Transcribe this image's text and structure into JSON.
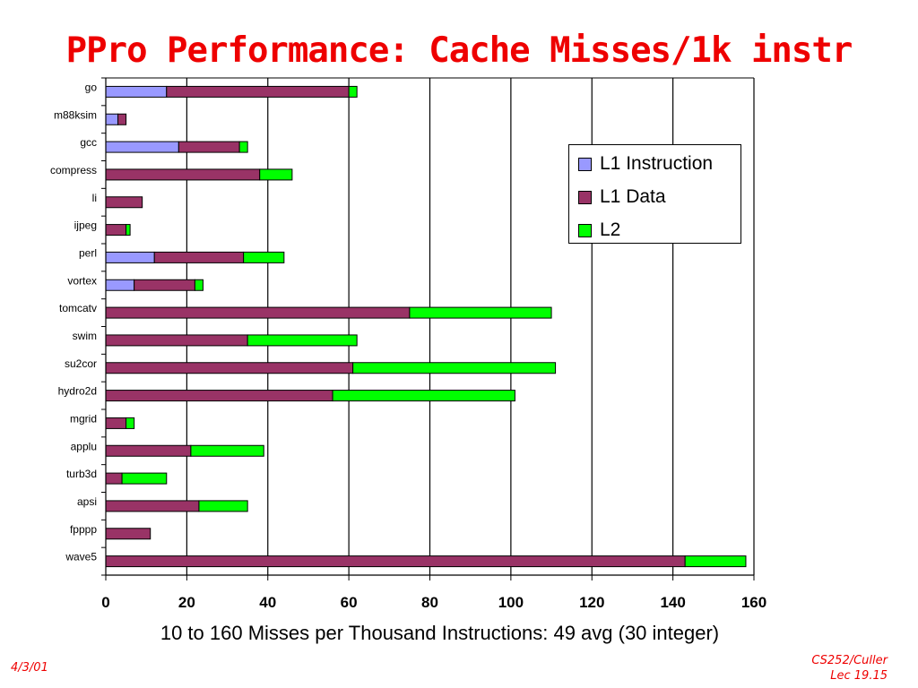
{
  "slide": {
    "title": "PPro Performance: Cache Misses/1k instr",
    "footer_date": "4/3/01",
    "footer_course": "CS252/Culler",
    "footer_lecture": "Lec 19.15"
  },
  "chart_data": {
    "type": "bar",
    "orientation": "horizontal",
    "stacked": true,
    "title": "",
    "xlabel": "10 to 160 Misses per Thousand Instructions: 49 avg (30 integer)",
    "ylabel": "",
    "xlim": [
      0,
      160
    ],
    "xticks": [
      "0",
      "20",
      "40",
      "60",
      "80",
      "100",
      "120",
      "140",
      "160"
    ],
    "grid": "vertical",
    "legend_position": "top-right",
    "categories": [
      "go",
      "m88ksim",
      "gcc",
      "compress",
      "li",
      "ijpeg",
      "perl",
      "vortex",
      "tomcatv",
      "swim",
      "su2cor",
      "hydro2d",
      "mgrid",
      "applu",
      "turb3d",
      "apsi",
      "fpppp",
      "wave5"
    ],
    "series": [
      {
        "name": "L1 Instruction",
        "color": "#9999ff",
        "values": [
          15,
          3,
          18,
          0,
          0,
          0,
          12,
          7,
          0,
          0,
          0,
          0,
          0,
          0,
          0,
          0,
          0,
          0
        ]
      },
      {
        "name": "L1 Data",
        "color": "#993366",
        "values": [
          45,
          2,
          15,
          38,
          9,
          5,
          22,
          15,
          75,
          35,
          61,
          56,
          5,
          21,
          4,
          23,
          11,
          143
        ]
      },
      {
        "name": "L2",
        "color": "#00ff00",
        "values": [
          2,
          0,
          2,
          8,
          0,
          1,
          10,
          2,
          35,
          27,
          50,
          45,
          2,
          18,
          11,
          12,
          0,
          15
        ]
      }
    ]
  }
}
